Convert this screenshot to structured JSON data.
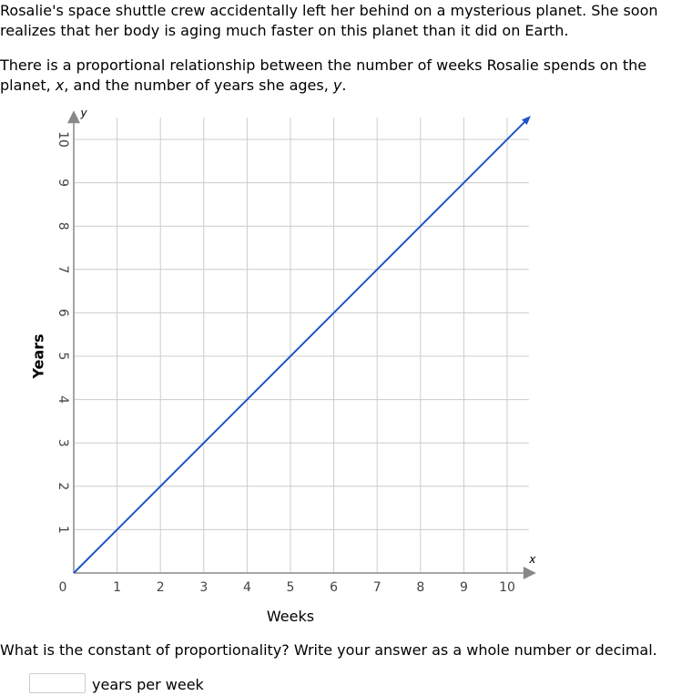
{
  "problem": {
    "paragraph1": "Rosalie's space shuttle crew accidentally left her behind on a mysterious planet. She soon realizes that her body is aging much faster on this planet than it did on Earth.",
    "paragraph2_before_x": "There is a proportional relationship between the number of weeks Rosalie spends on the planet, ",
    "var_x": "x",
    "paragraph2_middle": ", and the number of years she ages, ",
    "var_y": "y",
    "paragraph2_end": "."
  },
  "question": {
    "text": "What is the constant of proportionality? Write your answer as a whole number or decimal.",
    "answer_value": "",
    "unit_label": "years per week"
  },
  "chart_data": {
    "type": "line",
    "xlabel": "Weeks",
    "ylabel": "Years",
    "x_axis_variable": "x",
    "y_axis_variable": "y",
    "xlim": [
      0,
      10.5
    ],
    "ylim": [
      0,
      10.5
    ],
    "x_ticks": [
      0,
      1,
      2,
      3,
      4,
      5,
      6,
      7,
      8,
      9,
      10
    ],
    "y_ticks": [
      1,
      2,
      3,
      4,
      5,
      6,
      7,
      8,
      9,
      10
    ],
    "origin_label": "0",
    "grid": true,
    "series": [
      {
        "x": [
          0,
          10.5
        ],
        "y": [
          0,
          10.5
        ],
        "color": "#1c55c9",
        "arrow_end": true
      }
    ],
    "colors": {
      "grid": "#cccccc",
      "axis": "#888888",
      "line": "#1c55c9"
    }
  }
}
